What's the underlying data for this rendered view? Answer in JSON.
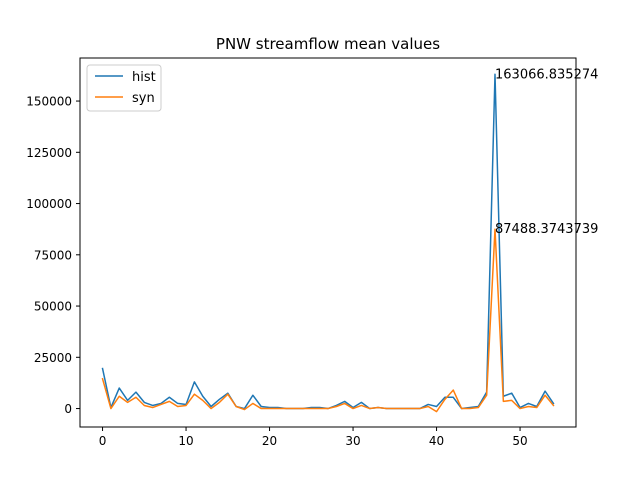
{
  "chart_data": {
    "type": "line",
    "title": "PNW streamflow mean values",
    "xlabel": "",
    "ylabel": "",
    "xlim": [
      -2.7,
      56.7
    ],
    "ylim": [
      -9000,
      171000
    ],
    "x_ticks": [
      0,
      10,
      20,
      30,
      40,
      50
    ],
    "y_ticks": [
      0,
      25000,
      50000,
      75000,
      100000,
      125000,
      150000
    ],
    "grid": false,
    "legend_position": "top-left",
    "x": [
      0,
      1,
      2,
      3,
      4,
      5,
      6,
      7,
      8,
      9,
      10,
      11,
      12,
      13,
      14,
      15,
      16,
      17,
      18,
      19,
      20,
      21,
      22,
      23,
      24,
      25,
      26,
      27,
      28,
      29,
      30,
      31,
      32,
      33,
      34,
      35,
      36,
      37,
      38,
      39,
      40,
      41,
      42,
      43,
      44,
      45,
      46,
      47,
      48,
      49,
      50,
      51,
      52,
      53,
      54
    ],
    "series": [
      {
        "name": "hist",
        "color": "#1f77b4",
        "values": [
          19500,
          500,
          10000,
          4000,
          8000,
          3000,
          1500,
          2500,
          5500,
          2500,
          2000,
          13000,
          6000,
          1000,
          4500,
          7500,
          1000,
          0,
          6500,
          1000,
          500,
          500,
          0,
          0,
          0,
          500,
          500,
          0,
          1500,
          3500,
          500,
          3000,
          0,
          500,
          0,
          0,
          0,
          0,
          0,
          2000,
          1000,
          5500,
          5500,
          0,
          500,
          1000,
          8000,
          163066.835274,
          6000,
          7500,
          500,
          2500,
          1000,
          8500,
          2500
        ]
      },
      {
        "name": "syn",
        "color": "#ff7f0e",
        "values": [
          14500,
          0,
          6000,
          3000,
          5500,
          1500,
          500,
          2000,
          3500,
          1000,
          1500,
          7000,
          4000,
          0,
          3000,
          7000,
          1000,
          -500,
          2500,
          0,
          0,
          0,
          0,
          0,
          0,
          0,
          0,
          0,
          1000,
          2500,
          0,
          1500,
          0,
          500,
          0,
          0,
          0,
          0,
          0,
          1000,
          -1500,
          4500,
          9000,
          0,
          0,
          500,
          6500,
          87488.3743739,
          3500,
          4000,
          0,
          1000,
          500,
          6500,
          1500
        ]
      }
    ],
    "annotations": [
      {
        "text": "163066.835274",
        "x": 47,
        "y": 163066.835274
      },
      {
        "text": "87488.3743739",
        "x": 47,
        "y": 87488.3743739
      }
    ]
  }
}
